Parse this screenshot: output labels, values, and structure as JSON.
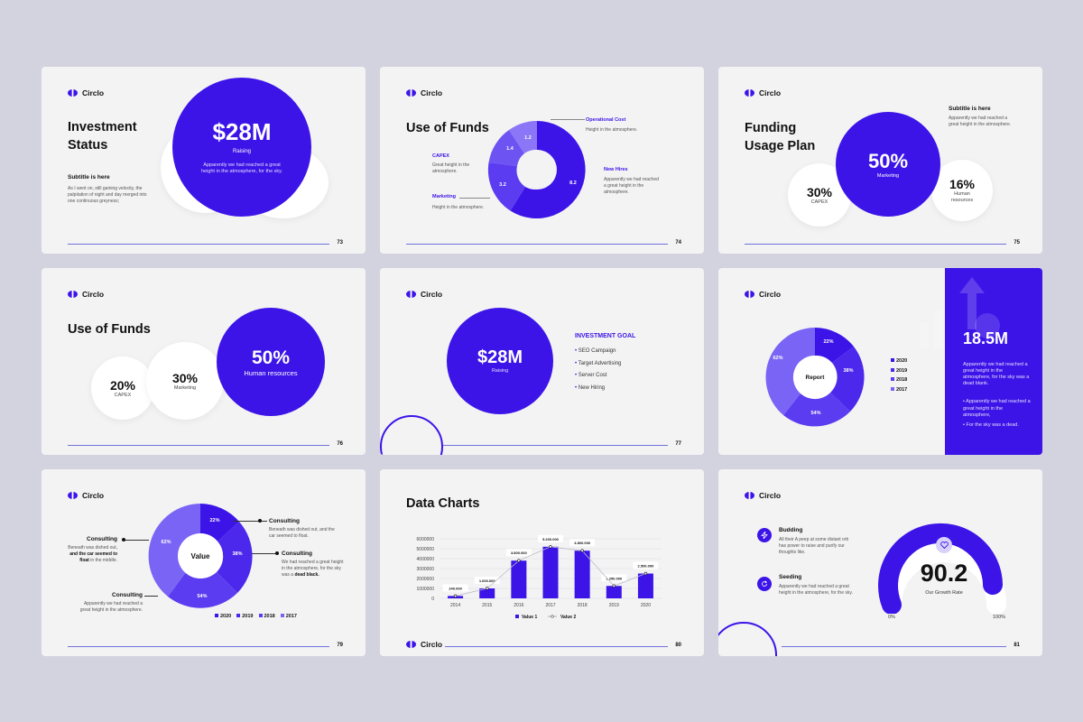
{
  "brand": "Circlo",
  "colors": {
    "accent": "#3c14e8",
    "accent_mid": "#5b3cf0",
    "accent_light": "#7a64f5",
    "page_bg": "#d3d2df",
    "slide_bg": "#f3f3f4"
  },
  "s1": {
    "title_a": "Investment",
    "title_b": "Status",
    "amount": "$28M",
    "amount_label": "Raising",
    "circle_text": "Apparently we had reached a great height in the atmosphere, for the sky.",
    "subtitle": "Subtitle is here",
    "body": "As I went on, still gaining velocity, the palpitation of night and day merged into one continuous greyness;",
    "page": "73"
  },
  "s2": {
    "title": "Use of Funds",
    "seg": [
      "1.2",
      "1.4",
      "3.2",
      "8.2"
    ],
    "op_title": "Operational Cost",
    "op_text": "Height in the atmosphere.",
    "capex_title": "CAPEX",
    "capex_text": "Great height in the atmosphere.",
    "new_title": "New Hires",
    "new_text": "Apparently we had reached a great height in the atmosphere.",
    "mkt_title": "Marketing",
    "mkt_text": "Height in the atmosphere.",
    "page": "74"
  },
  "s3": {
    "title_a": "Funding",
    "title_b": "Usage Plan",
    "subtitle": "Subtitle is here",
    "sub_text": "Apparently we had reached a great height in the atmosphere.",
    "big_val": "50%",
    "big_label": "Marketing",
    "c1_val": "30%",
    "c1_label": "CAPEX",
    "c2_val": "16%",
    "c2_label": "Human resources",
    "page": "75"
  },
  "s4": {
    "title": "Use of Funds",
    "c1_val": "20%",
    "c1_label": "CAPEX",
    "c2_val": "30%",
    "c2_label": "Marketing",
    "c3_val": "50%",
    "c3_label": "Human resources",
    "page": "76"
  },
  "s5": {
    "amount": "$28M",
    "amount_label": "Raising",
    "goal_title": "INVESTMENT GOAL",
    "goals": [
      "SEO Campaign",
      "Target Advertising",
      "Server Cost",
      "New Hiring"
    ],
    "page": "77"
  },
  "s6": {
    "center": "Report",
    "segs": [
      "22%",
      "38%",
      "54%",
      "62%"
    ],
    "legend": [
      "2020",
      "2019",
      "2018",
      "2017"
    ],
    "big": "18.5M",
    "text": "Apparently we had reached a great height in the atmosphere, for the sky was a dead blank.",
    "bullets": [
      "Apparently we had reached a great height in the atmosphere,",
      "For the sky was a dead."
    ]
  },
  "s7": {
    "center": "Value",
    "segs": [
      "22%",
      "38%",
      "54%",
      "62%"
    ],
    "legend": [
      "2020",
      "2019",
      "2018",
      "2017"
    ],
    "l1_title": "Consulting",
    "l1_text_a": "Beneath was dished out,",
    "l1_text_b": "and the car seemed to float",
    "l1_text_c": "in the middle.",
    "l2_title": "Consulting",
    "l2_text": "Apparently we had reached a great height in the atmosphere.",
    "r1_title": "Consulting",
    "r1_text": "Beneath was dished out, and the car seemed to float.",
    "r2_title": "Consulting",
    "r2_text_a": "We had reached a great height in the atmosphere, for the sky was a",
    "r2_text_b": "dead black.",
    "page": "79"
  },
  "s8": {
    "title": "Data Charts",
    "page": "80"
  },
  "chart_data": {
    "type": "bar",
    "title": "Data Charts",
    "categories": [
      "2014",
      "2015",
      "2016",
      "2017",
      "2018",
      "2019",
      "2020"
    ],
    "series": [
      {
        "name": "Value 1",
        "values": [
          240000,
          1000000,
          3800000,
          5200000,
          4800000,
          1250000,
          2500000
        ]
      },
      {
        "name": "Value 2",
        "values": [
          240000,
          1000000,
          3800000,
          5200000,
          4800000,
          1250000,
          2500000
        ]
      }
    ],
    "data_labels": [
      "240.000",
      "1.000.000",
      "3.800.000",
      "5.200.000",
      "4.800.000",
      "1.250.000",
      "2.500.000"
    ],
    "y_ticks": [
      "6000000",
      "5000000",
      "4000000",
      "3000000",
      "2000000",
      "1000000",
      "0"
    ],
    "ylim": [
      0,
      6000000
    ],
    "legend_position": "bottom"
  },
  "s9": {
    "i1_title": "Budding",
    "i1_text": "All their A peep at some distant orb has power to raise and purify our thoughts like.",
    "i2_title": "Seeding",
    "i2_text": "Apparently we had reached a great height in the atmosphere, for the sky.",
    "gauge_val": "90.2",
    "gauge_label": "Our Growth Rate",
    "gauge_min": "0%",
    "gauge_max": "100%",
    "gauge_fraction": 0.902,
    "page": "81"
  }
}
